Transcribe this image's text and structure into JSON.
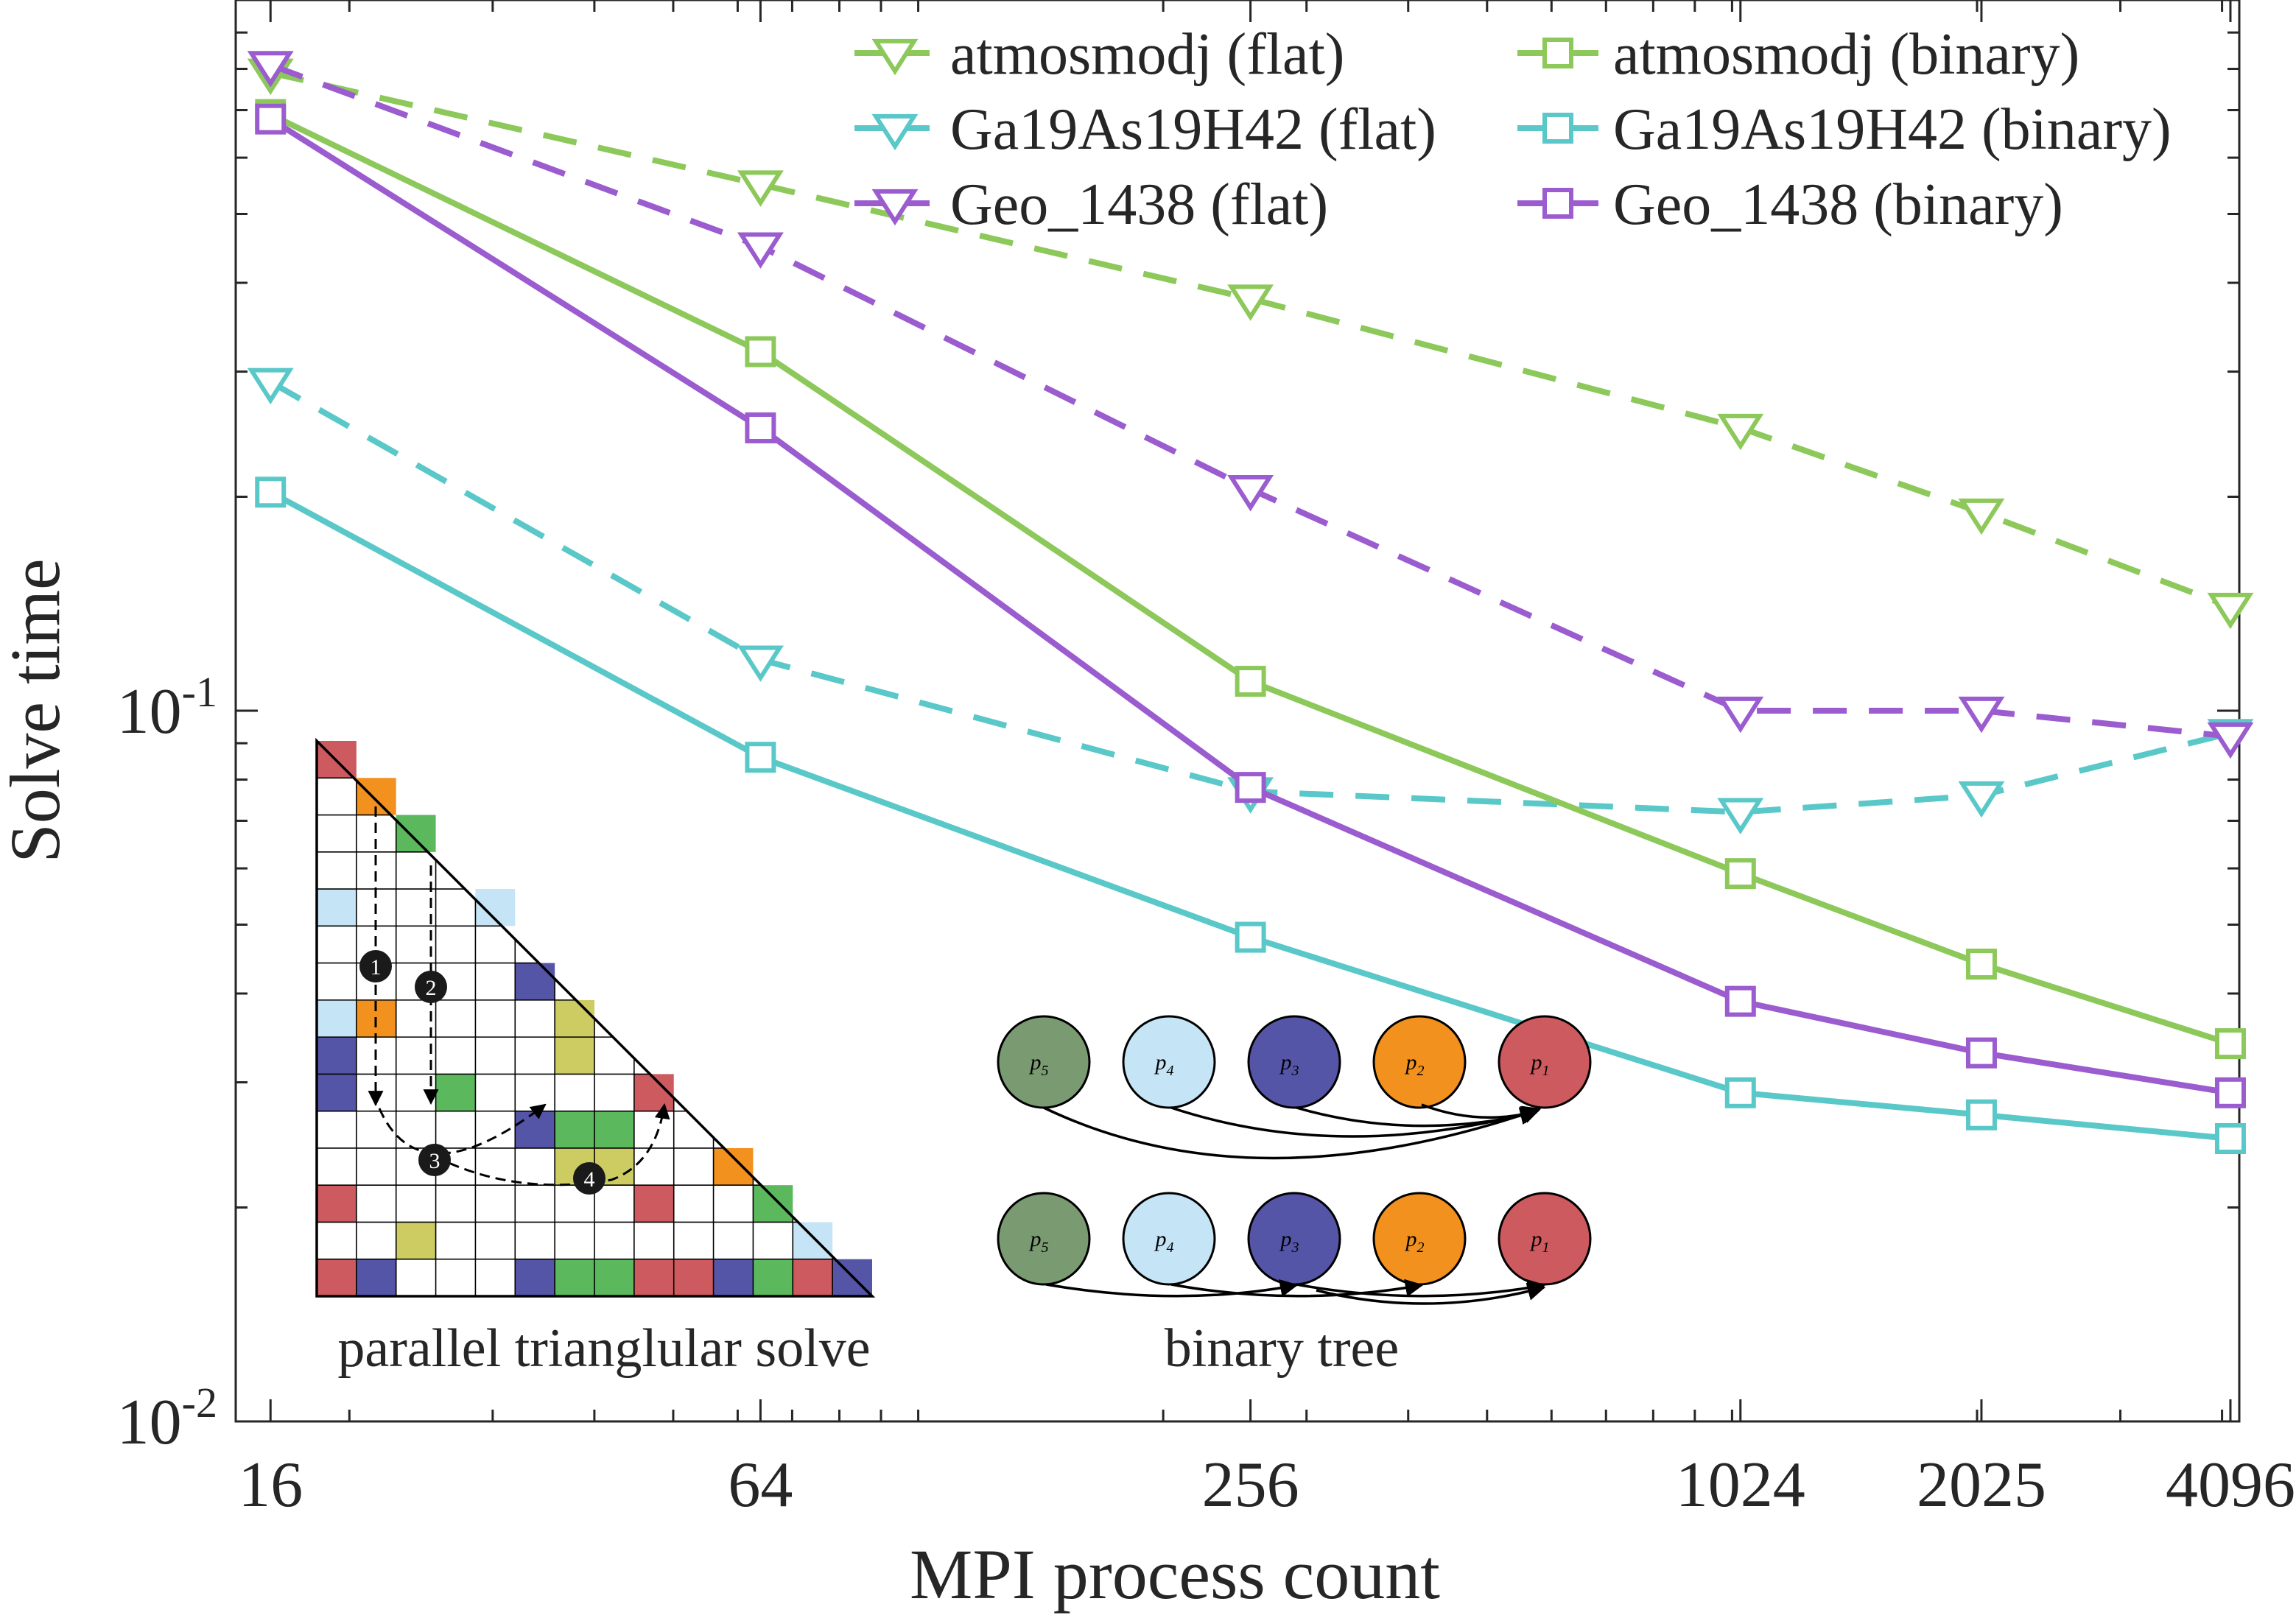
{
  "chart_data": {
    "type": "line",
    "title": "",
    "xlabel": "MPI process count",
    "ylabel": "Solve time",
    "xscale": "log",
    "yscale": "log",
    "x": [
      16,
      64,
      256,
      1024,
      2025,
      4096
    ],
    "x_tick_labels": [
      "16",
      "64",
      "256",
      "1024",
      "2025",
      "4096"
    ],
    "xlim": [
      14.5,
      4200
    ],
    "ylim": [
      0.01,
      1.0
    ],
    "y_ticks": [
      {
        "base": "10",
        "exp": "-1",
        "value": 0.1
      },
      {
        "base": "10",
        "exp": "-2",
        "value": 0.01
      }
    ],
    "grid": false,
    "legend_position": "top-right",
    "series": [
      {
        "name": "atmosmodj (flat)",
        "color": "#8dc85a",
        "style": "dashed",
        "marker": "triangle-down",
        "values": [
          0.79,
          0.55,
          0.38,
          0.25,
          0.19,
          0.14
        ]
      },
      {
        "name": "atmosmodj (binary)",
        "color": "#8dc85a",
        "style": "solid",
        "marker": "square",
        "values": [
          0.69,
          0.32,
          0.11,
          0.059,
          0.044,
          0.034
        ]
      },
      {
        "name": "Ga19As19H42 (flat)",
        "color": "#5ac8c8",
        "style": "dashed",
        "marker": "triangle-down",
        "values": [
          0.29,
          0.118,
          0.077,
          0.072,
          0.076,
          0.093
        ]
      },
      {
        "name": "Ga19As19H42 (binary)",
        "color": "#5ac8c8",
        "style": "solid",
        "marker": "square",
        "values": [
          0.203,
          0.086,
          0.048,
          0.029,
          0.027,
          0.025
        ]
      },
      {
        "name": "Geo_1438 (flat)",
        "color": "#9b5ccf",
        "style": "dashed",
        "marker": "triangle-down",
        "values": [
          0.81,
          0.45,
          0.205,
          0.1,
          0.1,
          0.092
        ]
      },
      {
        "name": "Geo_1438 (binary)",
        "color": "#9b5ccf",
        "style": "solid",
        "marker": "square",
        "values": [
          0.68,
          0.25,
          0.078,
          0.039,
          0.033,
          0.029
        ]
      }
    ]
  },
  "insets": {
    "triangle": {
      "caption": "parallel trianglular solve",
      "steps": [
        "1",
        "2",
        "3",
        "4"
      ],
      "palette": {
        "red": "#cc5a5f",
        "orange": "#f2911e",
        "green": "#5cb85c",
        "lightblue": "#c5e4f5",
        "navy": "#5555a8",
        "olive": "#cccc63"
      }
    },
    "tree": {
      "caption": "binary tree",
      "nodes": [
        {
          "name": "p",
          "sub": "5",
          "color": "#7a9a72"
        },
        {
          "name": "p",
          "sub": "4",
          "color": "#c5e4f5"
        },
        {
          "name": "p",
          "sub": "3",
          "color": "#5555a8"
        },
        {
          "name": "p",
          "sub": "2",
          "color": "#f2911e"
        },
        {
          "name": "p",
          "sub": "1",
          "color": "#cc5a5f"
        }
      ]
    }
  }
}
